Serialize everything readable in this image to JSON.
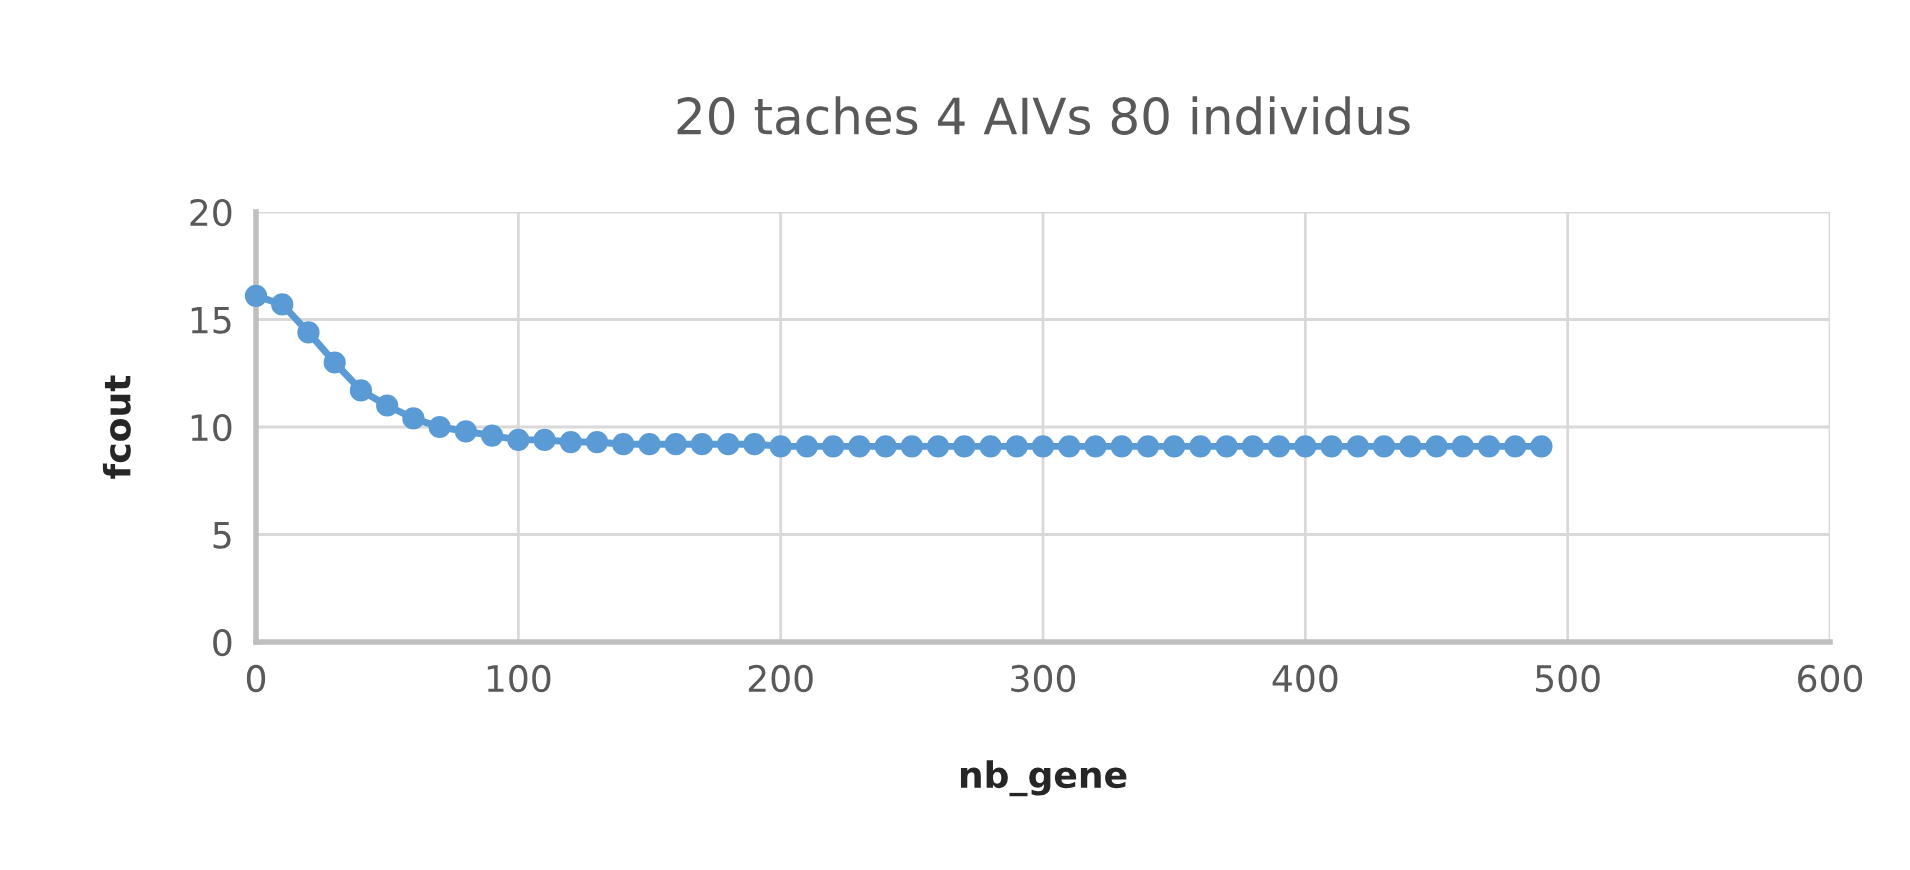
{
  "chart_data": {
    "type": "line",
    "title": "20 taches 4 AIVs 80 individus",
    "xlabel": "nb_gene",
    "ylabel": "fcout",
    "x": [
      0,
      10,
      20,
      30,
      40,
      50,
      60,
      70,
      80,
      90,
      100,
      110,
      120,
      130,
      140,
      150,
      160,
      170,
      180,
      190,
      200,
      210,
      220,
      230,
      240,
      250,
      260,
      270,
      280,
      290,
      300,
      310,
      320,
      330,
      340,
      350,
      360,
      370,
      380,
      390,
      400,
      410,
      420,
      430,
      440,
      450,
      460,
      470,
      480,
      490
    ],
    "series": [
      {
        "color": "#5b9bd5",
        "values": [
          16.1,
          15.7,
          14.4,
          13.0,
          11.7,
          11.0,
          10.4,
          10.0,
          9.8,
          9.6,
          9.4,
          9.4,
          9.3,
          9.3,
          9.2,
          9.2,
          9.2,
          9.2,
          9.2,
          9.2,
          9.1,
          9.1,
          9.1,
          9.1,
          9.1,
          9.1,
          9.1,
          9.1,
          9.1,
          9.1,
          9.1,
          9.1,
          9.1,
          9.1,
          9.1,
          9.1,
          9.1,
          9.1,
          9.1,
          9.1,
          9.1,
          9.1,
          9.1,
          9.1,
          9.1,
          9.1,
          9.1,
          9.1,
          9.1,
          9.1
        ]
      }
    ],
    "xlim": [
      0,
      600
    ],
    "xticks": [
      0,
      100,
      200,
      300,
      400,
      500,
      600
    ],
    "ylim": [
      0,
      20
    ],
    "yticks": [
      0,
      5,
      10,
      15,
      20
    ],
    "grid": true,
    "marker": "circle",
    "line_style": "solid"
  }
}
